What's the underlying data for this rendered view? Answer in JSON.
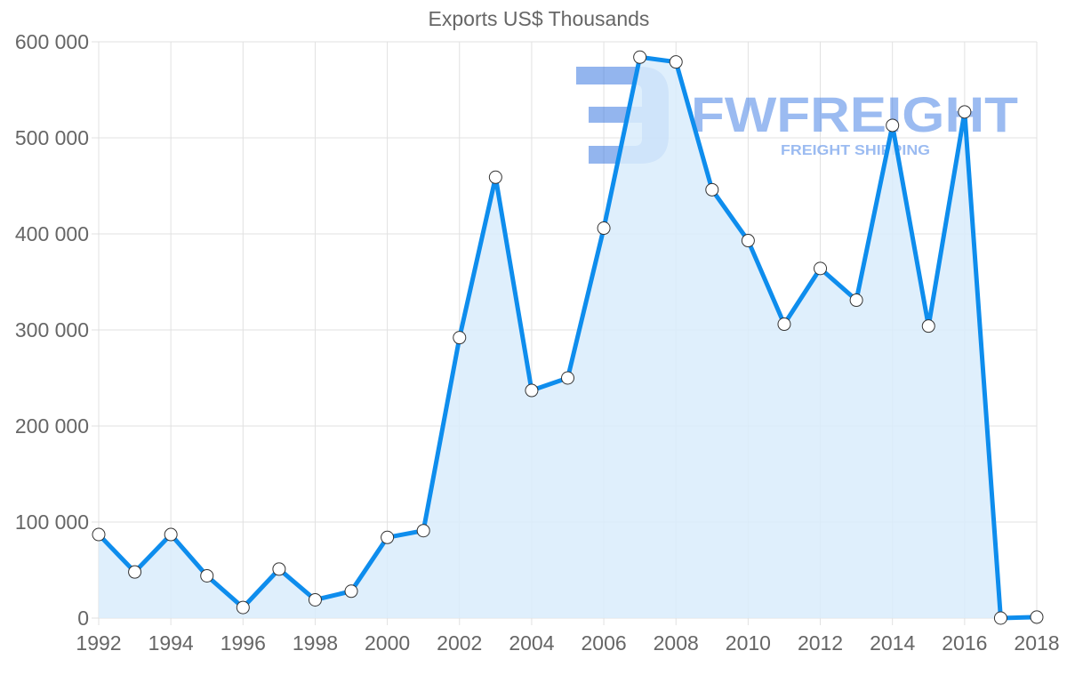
{
  "chart_data": {
    "type": "area",
    "title": "Exports US$ Thousands",
    "xlabel": "",
    "ylabel": "",
    "x": [
      1992,
      1993,
      1994,
      1995,
      1996,
      1997,
      1998,
      1999,
      2000,
      2001,
      2002,
      2003,
      2004,
      2005,
      2006,
      2007,
      2008,
      2009,
      2010,
      2011,
      2012,
      2013,
      2014,
      2015,
      2016,
      2017,
      2018
    ],
    "series": [
      {
        "name": "Exports US$ Thousands",
        "values": [
          87000,
          48000,
          87000,
          44000,
          11000,
          51000,
          19000,
          28000,
          84000,
          91000,
          292000,
          459000,
          237000,
          250000,
          406000,
          584000,
          579000,
          446000,
          393000,
          306000,
          364000,
          331000,
          513000,
          304000,
          527000,
          0,
          1000
        ]
      }
    ],
    "ylim": [
      0,
      600000
    ],
    "yticks": [
      0,
      100000,
      200000,
      300000,
      400000,
      500000,
      600000
    ],
    "ytick_labels": [
      "0",
      "100 000",
      "200 000",
      "300 000",
      "400 000",
      "500 000",
      "600 000"
    ],
    "xtick_labels": [
      "1992",
      "1994",
      "1996",
      "1998",
      "2000",
      "2002",
      "2004",
      "2006",
      "2008",
      "2010",
      "2012",
      "2014",
      "2016",
      "2018"
    ],
    "grid": true,
    "legend": null
  },
  "colors": {
    "line": "#0e8ded",
    "fill": "#d9ecfc",
    "grid": "#e1e1e1",
    "text": "#666666",
    "point_fill": "#ffffff",
    "point_stroke": "#333333",
    "watermark": "#7ba6ee"
  },
  "watermark": {
    "brand": "FWFREIGHT",
    "tagline": "FREIGHT SHIPPING"
  }
}
